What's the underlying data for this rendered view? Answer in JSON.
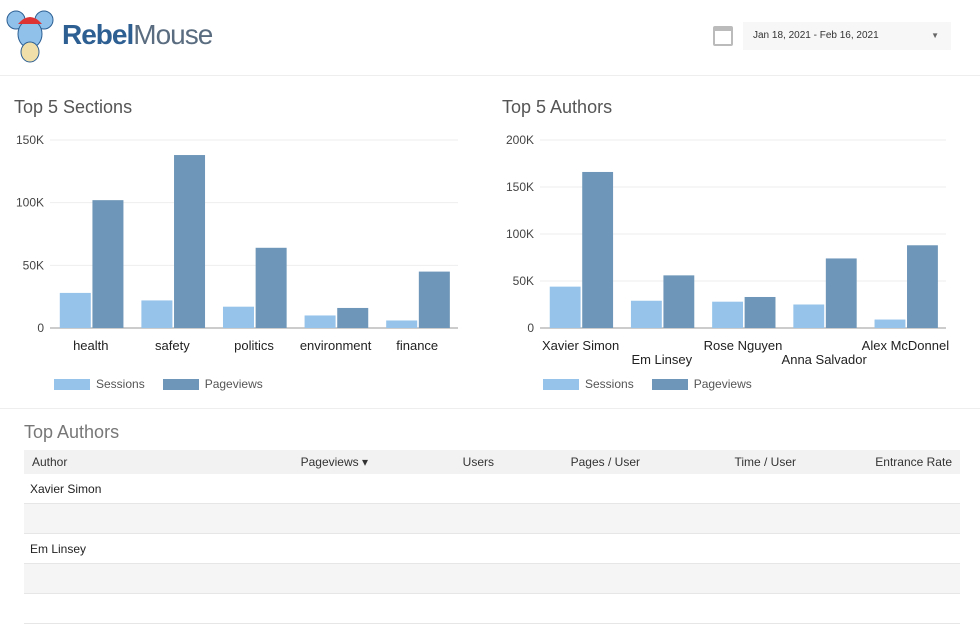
{
  "header": {
    "brand_bold": "Rebel",
    "brand_light": "Mouse",
    "date_range": "Jan 18, 2021 - Feb 16, 2021"
  },
  "colors": {
    "sessions": "#95c3ea",
    "pageviews": "#6e96b8"
  },
  "legend": {
    "sessions": "Sessions",
    "pageviews": "Pageviews"
  },
  "chart_data": [
    {
      "type": "bar",
      "title": "Top 5 Sections",
      "categories": [
        "health",
        "safety",
        "politics",
        "environment",
        "finance"
      ],
      "yticks": [
        "0",
        "50K",
        "100K",
        "150K"
      ],
      "ylim": [
        0,
        150000
      ],
      "series": [
        {
          "name": "Sessions",
          "values": [
            28000,
            22000,
            17000,
            10000,
            6000
          ]
        },
        {
          "name": "Pageviews",
          "values": [
            102000,
            138000,
            64000,
            16000,
            45000
          ]
        }
      ]
    },
    {
      "type": "bar",
      "title": "Top 5 Authors",
      "categories": [
        "Xavier Simon",
        "Em Linsey",
        "Rose Nguyen",
        "Anna Salvador",
        "Alex McDonnel"
      ],
      "yticks": [
        "0",
        "50K",
        "100K",
        "150K",
        "200K"
      ],
      "ylim": [
        0,
        200000
      ],
      "series": [
        {
          "name": "Sessions",
          "values": [
            44000,
            29000,
            28000,
            25000,
            9000
          ]
        },
        {
          "name": "Pageviews",
          "values": [
            166000,
            56000,
            33000,
            74000,
            88000
          ]
        }
      ]
    }
  ],
  "table": {
    "title": "Top Authors",
    "columns": [
      "Author",
      "Pageviews ▾",
      "Users",
      "Pages / User",
      "Time / User",
      "Entrance Rate"
    ],
    "rows": [
      "Xavier Simon",
      "",
      "Em Linsey",
      "",
      ""
    ]
  }
}
